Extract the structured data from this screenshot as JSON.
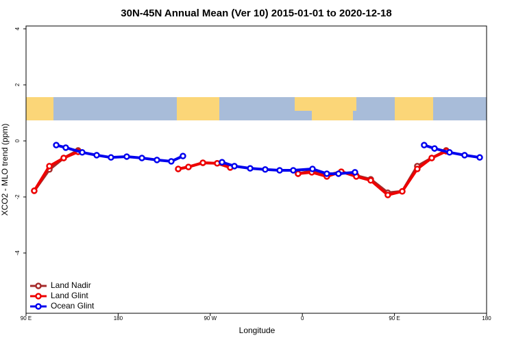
{
  "chart_data": {
    "type": "line",
    "title": "30N-45N Annual Mean (Ver 10)   2015-01-01 to 2020-12-18",
    "x_label": "Longitude",
    "y_label": "XCO2 - MLO trend (ppm)",
    "xlim": [
      90,
      540
    ],
    "ylim": [
      -6.15,
      4.1
    ],
    "xticks": [
      {
        "value": 90,
        "label": "90 E"
      },
      180,
      {
        "value": 270,
        "label": "90 W"
      },
      {
        "value": 360,
        "label": "0"
      },
      {
        "value": 450,
        "label": "90 E"
      },
      {
        "value": 540,
        "label": "180"
      }
    ],
    "yticks": [
      4,
      2,
      0,
      -2,
      -4
    ],
    "legend": "bottom-left",
    "series": [
      {
        "name": "Land Nadir",
        "color": "#a52a2a",
        "x": [
          98.0,
          112.8,
          126.8,
          140.9,
          null,
          238.7,
          248.7,
          262.8,
          276.8,
          289.5,
          null,
          355.8,
          369.2,
          383.9,
          398.0,
          412.7,
          426.8,
          443.5,
          457.6,
          472.3,
          486.4,
          500.5
        ],
        "values": [
          -1.78,
          -1.02,
          -0.61,
          -0.34,
          null,
          -1.0,
          -0.93,
          -0.78,
          -0.8,
          -0.95,
          null,
          -1.17,
          -1.07,
          -1.22,
          -1.1,
          -1.24,
          -1.37,
          -1.85,
          -1.8,
          -0.9,
          -0.61,
          -0.34
        ]
      },
      {
        "name": "Land Glint",
        "color": "#ee0000",
        "x": [
          98.0,
          112.8,
          126.8,
          140.9,
          null,
          238.7,
          248.7,
          262.8,
          276.8,
          289.5,
          null,
          355.8,
          369.2,
          383.9,
          398.0,
          412.7,
          426.8,
          443.5,
          457.6,
          472.3,
          486.4,
          500.5
        ],
        "values": [
          -1.78,
          -0.9,
          -0.61,
          -0.39,
          null,
          -1.0,
          -0.93,
          -0.78,
          -0.8,
          -0.95,
          null,
          -1.17,
          -1.12,
          -1.27,
          -1.1,
          -1.27,
          -1.41,
          -1.93,
          -1.8,
          -1.0,
          -0.61,
          -0.37
        ]
      },
      {
        "name": "Ocean Glint",
        "color": "#0000ee",
        "x": [
          119.5,
          128.8,
          144.9,
          159.0,
          173.0,
          188.4,
          203.2,
          217.9,
          231.9,
          243.3,
          null,
          281.5,
          293.6,
          309.0,
          323.7,
          337.8,
          351.1,
          369.9,
          383.9,
          395.3,
          411.4,
          null,
          479.0,
          489.1,
          503.8,
          518.5,
          533.3
        ],
        "values": [
          -0.15,
          -0.24,
          -0.41,
          -0.51,
          -0.59,
          -0.56,
          -0.61,
          -0.68,
          -0.73,
          -0.54,
          null,
          -0.76,
          -0.9,
          -0.98,
          -1.02,
          -1.05,
          -1.05,
          -1.0,
          -1.17,
          -1.17,
          -1.12,
          null,
          -0.15,
          -0.27,
          -0.41,
          -0.51,
          -0.59
        ]
      }
    ]
  }
}
